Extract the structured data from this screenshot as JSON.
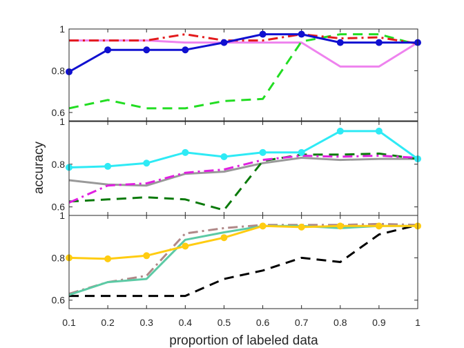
{
  "chart_data": {
    "type": "line",
    "xlabel": "proportion of labeled data",
    "ylabel": "accuracy",
    "x": [
      0.1,
      0.2,
      0.3,
      0.4,
      0.5,
      0.6,
      0.7,
      0.8,
      0.9,
      1
    ],
    "x_tick_labels": [
      "0.1",
      "0.2",
      "0.3",
      "0.4",
      "0.5",
      "0.6",
      "0.7",
      "0.8",
      "0.9",
      "1"
    ],
    "xlim": [
      0.1,
      1
    ],
    "panels": [
      {
        "ylim": [
          0.56,
          1.0
        ],
        "y_ticks": [
          0.6,
          0.8,
          1
        ],
        "y_tick_labels": [
          "0.6",
          "0.8",
          "1"
        ],
        "series": [
          {
            "name": "pink-solid",
            "color": "#ee82ee",
            "style": "solid",
            "marker": false,
            "values": [
              0.945,
              0.945,
              0.945,
              0.935,
              0.935,
              0.935,
              0.935,
              0.82,
              0.82,
              0.935
            ]
          },
          {
            "name": "green-dashed",
            "color": "#22dd22",
            "style": "dashed",
            "marker": false,
            "values": [
              0.62,
              0.66,
              0.62,
              0.62,
              0.655,
              0.665,
              0.94,
              0.975,
              0.975,
              0.925
            ]
          },
          {
            "name": "red-dashdot",
            "color": "#e31a1c",
            "style": "dashdot",
            "marker": false,
            "values": [
              0.945,
              0.945,
              0.945,
              0.975,
              0.945,
              0.945,
              0.975,
              0.955,
              0.96,
              0.93
            ]
          },
          {
            "name": "blue-marker",
            "color": "#1010d0",
            "style": "solid",
            "marker": true,
            "values": [
              0.795,
              0.9,
              0.9,
              0.9,
              0.935,
              0.975,
              0.975,
              0.935,
              0.935,
              0.935
            ]
          }
        ]
      },
      {
        "ylim": [
          0.56,
          1.0
        ],
        "y_ticks": [
          0.6,
          0.8,
          1
        ],
        "y_tick_labels": [
          "0.6",
          "0.8",
          "1"
        ],
        "series": [
          {
            "name": "gray-solid",
            "color": "#999999",
            "style": "solid",
            "marker": false,
            "values": [
              0.725,
              0.705,
              0.7,
              0.755,
              0.765,
              0.805,
              0.83,
              0.82,
              0.825,
              0.825
            ]
          },
          {
            "name": "darkgreen-dashed",
            "color": "#0a7a0a",
            "style": "dashed",
            "marker": false,
            "values": [
              0.625,
              0.635,
              0.645,
              0.635,
              0.585,
              0.815,
              0.845,
              0.845,
              0.85,
              0.825
            ]
          },
          {
            "name": "magenta-dashdot",
            "color": "#e020e0",
            "style": "dashdot",
            "marker": false,
            "values": [
              0.62,
              0.7,
              0.71,
              0.76,
              0.775,
              0.82,
              0.84,
              0.835,
              0.84,
              0.83
            ]
          },
          {
            "name": "cyan-marker",
            "color": "#2eeaf5",
            "style": "solid",
            "marker": true,
            "values": [
              0.785,
              0.79,
              0.805,
              0.855,
              0.835,
              0.855,
              0.855,
              0.955,
              0.955,
              0.825
            ]
          }
        ]
      },
      {
        "ylim": [
          0.56,
          1.0
        ],
        "y_ticks": [
          0.6,
          0.8,
          1
        ],
        "y_tick_labels": [
          "0.6",
          "0.8",
          "1"
        ],
        "series": [
          {
            "name": "black-dashed",
            "color": "#000000",
            "style": "dashed",
            "marker": false,
            "values": [
              0.62,
              0.62,
              0.62,
              0.62,
              0.7,
              0.74,
              0.8,
              0.78,
              0.91,
              0.955
            ]
          },
          {
            "name": "rosybrown-dashdot",
            "color": "#b08888",
            "style": "dashdot",
            "marker": false,
            "values": [
              0.63,
              0.685,
              0.715,
              0.915,
              0.94,
              0.955,
              0.955,
              0.955,
              0.96,
              0.955
            ]
          },
          {
            "name": "teal-solid",
            "color": "#5ccaa5",
            "style": "solid",
            "marker": false,
            "values": [
              0.625,
              0.685,
              0.7,
              0.885,
              0.92,
              0.95,
              0.95,
              0.94,
              0.95,
              0.95
            ]
          },
          {
            "name": "gold-marker",
            "color": "#ffcc11",
            "style": "solid",
            "marker": true,
            "values": [
              0.8,
              0.795,
              0.81,
              0.855,
              0.895,
              0.95,
              0.945,
              0.95,
              0.95,
              0.95
            ]
          }
        ]
      }
    ]
  }
}
